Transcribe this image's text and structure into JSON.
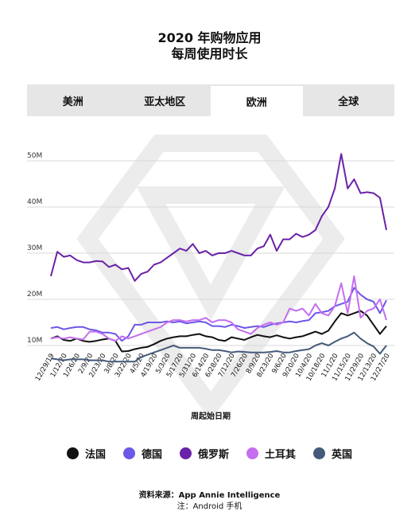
{
  "header": {
    "title_line1": "2020 年购物应用",
    "title_line2": "每周使用时长"
  },
  "tabs": [
    {
      "label": "美洲",
      "active": false
    },
    {
      "label": "亚太地区",
      "active": false
    },
    {
      "label": "欧洲",
      "active": true
    },
    {
      "label": "全球",
      "active": false
    }
  ],
  "footer": {
    "source": "资料来源：App Annie Intelligence",
    "note": "注：Android 手机"
  },
  "chart_data": {
    "type": "line",
    "xlabel": "周起始日期",
    "ylabel": "",
    "ylim": [
      0,
      55
    ],
    "y_ticks": [
      {
        "value": 10,
        "label": "10M"
      },
      {
        "value": 20,
        "label": "20M"
      },
      {
        "value": 30,
        "label": "30M"
      },
      {
        "value": 40,
        "label": "40M"
      },
      {
        "value": 50,
        "label": "50M"
      }
    ],
    "x_tick_labels": [
      "12/29/19",
      "1/12/20",
      "1/26/20",
      "2/9/20",
      "2/23/20",
      "3/8/20",
      "3/22/20",
      "4/5/20",
      "4/19/20",
      "5/3/20",
      "5/17/20",
      "5/31/20",
      "6/14/20",
      "6/28/20",
      "7/12/20",
      "7/26/20",
      "8/9/20",
      "8/23/20",
      "9/6/20",
      "9/20/20",
      "10/4/20",
      "10/18/20",
      "11/1/20",
      "11/15/20",
      "11/29/20",
      "12/13/20",
      "12/27/20"
    ],
    "x_weeks": [
      "12/29/19",
      "1/5/20",
      "1/12/20",
      "1/19/20",
      "1/26/20",
      "2/2/20",
      "2/9/20",
      "2/16/20",
      "2/23/20",
      "3/1/20",
      "3/8/20",
      "3/15/20",
      "3/22/20",
      "3/29/20",
      "4/5/20",
      "4/12/20",
      "4/19/20",
      "4/26/20",
      "5/3/20",
      "5/10/20",
      "5/17/20",
      "5/24/20",
      "5/31/20",
      "6/7/20",
      "6/14/20",
      "6/21/20",
      "6/28/20",
      "7/5/20",
      "7/12/20",
      "7/19/20",
      "7/26/20",
      "8/2/20",
      "8/9/20",
      "8/16/20",
      "8/23/20",
      "8/30/20",
      "9/6/20",
      "9/13/20",
      "9/20/20",
      "9/27/20",
      "10/4/20",
      "10/11/20",
      "10/18/20",
      "10/25/20",
      "11/1/20",
      "11/8/20",
      "11/15/20",
      "11/22/20",
      "11/29/20",
      "12/6/20",
      "12/13/20",
      "12/20/20",
      "12/27/20"
    ],
    "series": [
      {
        "name": "法国",
        "color": "#111111",
        "values": [
          11.5,
          12.0,
          11.2,
          11.0,
          11.5,
          11.0,
          10.8,
          11.0,
          11.3,
          11.5,
          11.0,
          8.7,
          8.8,
          9.2,
          9.5,
          9.7,
          10.3,
          11.0,
          11.5,
          11.8,
          12.0,
          12.0,
          12.3,
          12.5,
          12.0,
          11.8,
          11.2,
          11.0,
          11.8,
          11.5,
          11.2,
          11.8,
          12.3,
          12.0,
          11.8,
          12.2,
          11.8,
          11.5,
          11.8,
          12.0,
          12.5,
          13.0,
          12.5,
          13.2,
          15.2,
          17.0,
          16.5,
          17.0,
          17.5,
          16.5,
          14.5,
          12.5,
          14.2
        ]
      },
      {
        "name": "德国",
        "color": "#6b57e8",
        "values": [
          13.8,
          14.0,
          13.5,
          13.8,
          14.0,
          14.0,
          13.5,
          13.3,
          12.8,
          12.8,
          12.5,
          11.0,
          12.0,
          14.5,
          14.5,
          15.0,
          15.0,
          15.0,
          15.2,
          15.0,
          15.2,
          14.8,
          15.0,
          15.2,
          15.0,
          14.2,
          14.2,
          14.0,
          14.5,
          14.2,
          13.8,
          14.0,
          14.2,
          14.0,
          14.5,
          14.8,
          15.0,
          15.2,
          15.0,
          15.3,
          15.5,
          17.0,
          17.2,
          17.5,
          18.5,
          19.0,
          19.5,
          22.5,
          21.0,
          20.0,
          19.5,
          17.0,
          19.8
        ]
      },
      {
        "name": "俄罗斯",
        "color": "#6a22a8",
        "values": [
          25.0,
          30.3,
          29.2,
          29.5,
          28.5,
          28.0,
          28.0,
          28.3,
          28.2,
          27.0,
          27.5,
          26.5,
          26.8,
          24.0,
          25.5,
          26.0,
          27.5,
          28.0,
          29.0,
          30.0,
          31.0,
          30.5,
          32.0,
          30.0,
          30.5,
          29.5,
          30.0,
          30.0,
          30.5,
          30.0,
          29.5,
          29.5,
          31.0,
          31.5,
          34.0,
          30.5,
          33.0,
          33.0,
          34.2,
          33.5,
          34.0,
          35.0,
          38.0,
          40.0,
          44.0,
          51.5,
          44.0,
          46.0,
          43.0,
          43.2,
          43.0,
          42.0,
          35.0
        ]
      },
      {
        "name": "土耳其",
        "color": "#c56ef0",
        "values": [
          11.5,
          11.8,
          11.5,
          11.8,
          11.5,
          11.3,
          13.0,
          13.0,
          12.5,
          11.5,
          11.0,
          12.0,
          11.5,
          12.0,
          12.5,
          13.0,
          13.5,
          14.0,
          15.0,
          15.5,
          15.5,
          15.2,
          15.5,
          15.5,
          16.0,
          15.0,
          15.5,
          15.5,
          15.0,
          13.5,
          13.0,
          12.5,
          13.8,
          14.5,
          15.0,
          14.5,
          15.0,
          18.0,
          17.5,
          18.0,
          16.5,
          19.0,
          17.0,
          16.5,
          18.5,
          23.5,
          17.0,
          25.0,
          16.0,
          17.5,
          18.0,
          20.0,
          15.5
        ]
      },
      {
        "name": "英国",
        "color": "#455a7a",
        "values": [
          7.2,
          7.0,
          6.8,
          7.0,
          7.0,
          7.0,
          6.8,
          6.8,
          6.8,
          6.5,
          6.5,
          6.5,
          6.5,
          6.5,
          7.5,
          8.0,
          8.5,
          9.0,
          9.5,
          10.0,
          9.5,
          9.5,
          9.5,
          9.5,
          9.3,
          9.0,
          9.0,
          8.8,
          8.5,
          8.7,
          8.6,
          8.5,
          8.5,
          8.5,
          8.6,
          8.8,
          8.5,
          8.5,
          8.8,
          9.0,
          9.2,
          10.0,
          10.5,
          10.0,
          10.8,
          11.5,
          12.0,
          12.8,
          11.5,
          10.5,
          9.8,
          8.2,
          10.0
        ]
      }
    ]
  }
}
